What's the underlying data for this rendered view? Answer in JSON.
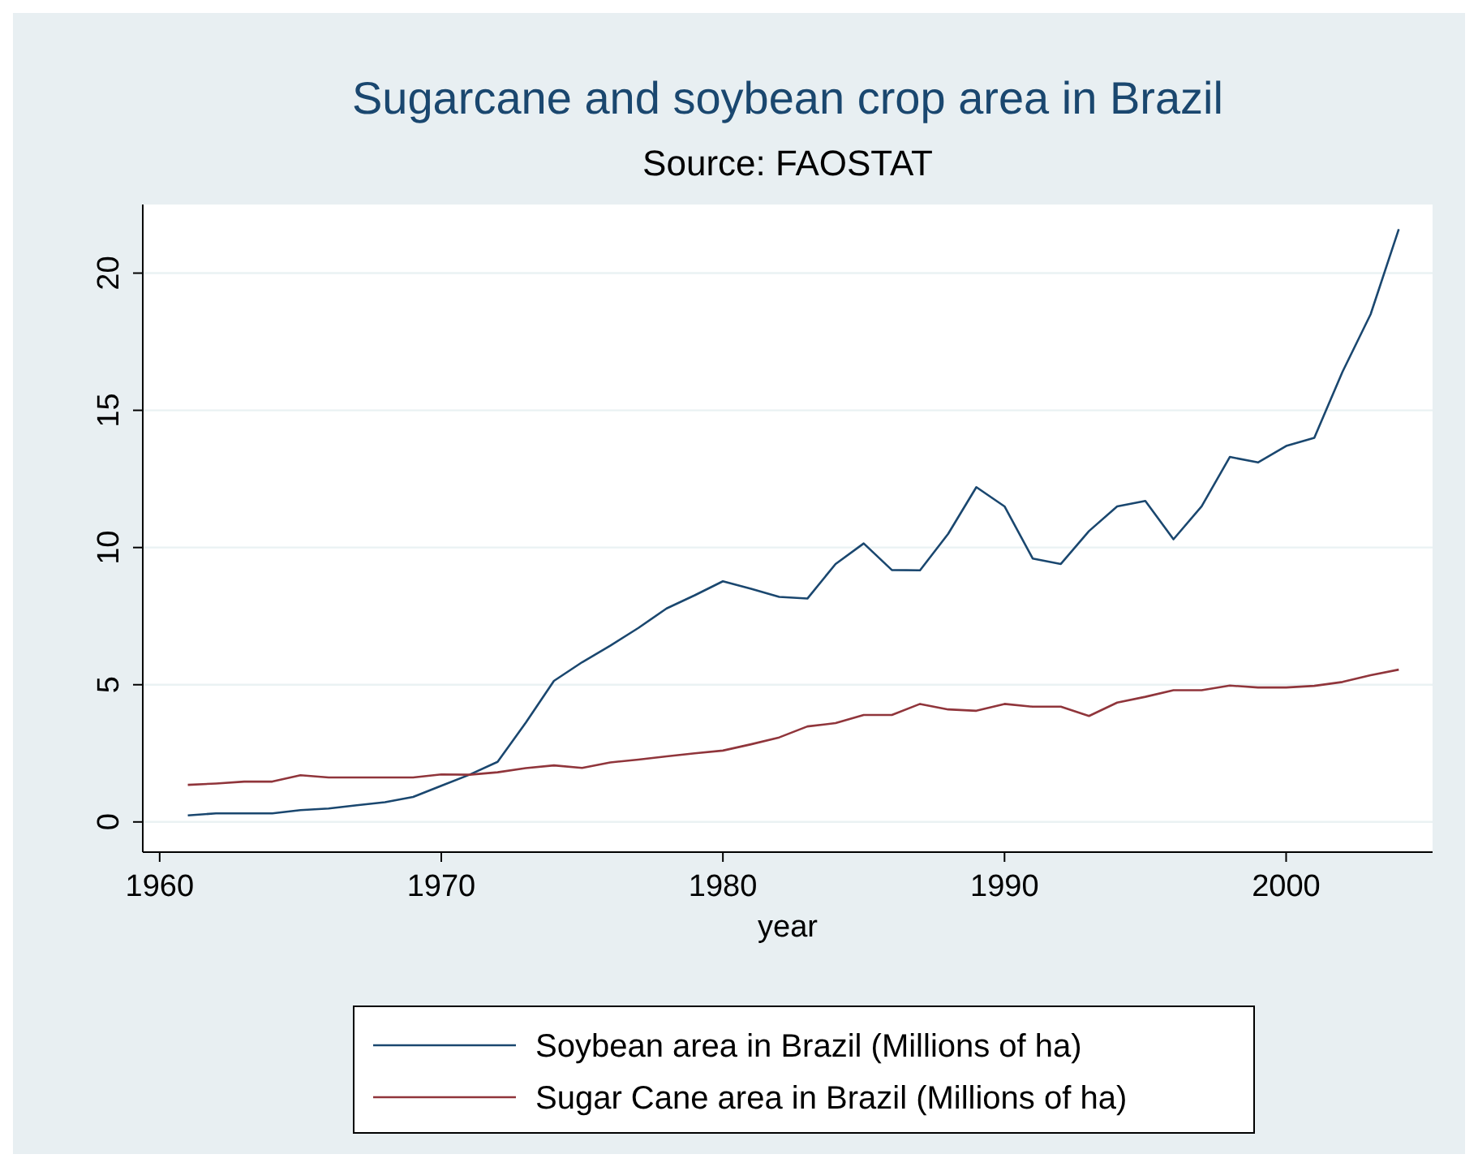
{
  "chart_data": {
    "type": "line",
    "title": "Sugarcane and soybean crop area in Brazil",
    "subtitle": "Source: FAOSTAT",
    "xlabel": "year",
    "x": [
      1961,
      1962,
      1963,
      1964,
      1965,
      1966,
      1967,
      1968,
      1969,
      1970,
      1971,
      1972,
      1973,
      1974,
      1975,
      1976,
      1977,
      1978,
      1979,
      1980,
      1981,
      1982,
      1983,
      1984,
      1985,
      1986,
      1987,
      1988,
      1989,
      1990,
      1991,
      1992,
      1993,
      1994,
      1995,
      1996,
      1997,
      1998,
      1999,
      2000,
      2001,
      2002,
      2003,
      2004
    ],
    "series": [
      {
        "name": "Soybean area in Brazil (Millions of ha)",
        "color": "#1a476f",
        "values": [
          0.24,
          0.31,
          0.31,
          0.31,
          0.43,
          0.49,
          0.61,
          0.72,
          0.91,
          1.32,
          1.72,
          2.19,
          3.62,
          5.14,
          5.82,
          6.42,
          7.07,
          7.78,
          8.26,
          8.77,
          8.5,
          8.2,
          8.14,
          9.4,
          10.15,
          9.18,
          9.17,
          10.5,
          12.2,
          11.5,
          9.6,
          9.4,
          10.6,
          11.5,
          11.7,
          10.3,
          11.5,
          13.3,
          13.1,
          13.7,
          14.0,
          16.4,
          18.5,
          21.6
        ]
      },
      {
        "name": "Sugar Cane area in Brazil (Millions of ha)",
        "color": "#90353b",
        "values": [
          1.35,
          1.4,
          1.47,
          1.47,
          1.7,
          1.62,
          1.62,
          1.62,
          1.62,
          1.73,
          1.72,
          1.81,
          1.96,
          2.06,
          1.97,
          2.17,
          2.27,
          2.39,
          2.5,
          2.6,
          2.83,
          3.08,
          3.48,
          3.6,
          3.9,
          3.9,
          4.3,
          4.1,
          4.05,
          4.3,
          4.2,
          4.2,
          3.86,
          4.35,
          4.56,
          4.8,
          4.8,
          4.97,
          4.9,
          4.9,
          4.96,
          5.1,
          5.35,
          5.55
        ]
      }
    ],
    "xlim": [
      1959.4,
      2005.2
    ],
    "xticks": [
      1960,
      1970,
      1980,
      1990,
      2000
    ],
    "ylim": [
      -1.1,
      22.5
    ],
    "yticks": [
      0,
      5,
      10,
      15,
      20
    ],
    "grid": "y",
    "legend": "bottom",
    "marker": "none",
    "line_style": "solid"
  }
}
